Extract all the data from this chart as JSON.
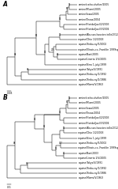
{
  "panel_A": {
    "label": "A",
    "scale_bar_label": "0.005",
    "leaves": [
      "canine/ca/ko-shelter/2005",
      "canine/Miami/2005",
      "canine/Iowa/2005",
      "canine/Texas/2004",
      "canine/Florida(Jax)/2/2003",
      "canine/Florida(Jax)/3/2004",
      "equine/Ala-san-houston-tello/2/12/2003",
      "equine/Ohio 1/2/2003",
      "equine/Xinbu-ny/5/2002",
      "equine/Illinois-co.-Franklin 1999sp/2004",
      "equine/Bari/2005",
      "equine/Linaria 1/V/2005",
      "equine/New 1-july/1999",
      "equine/Tokyo/V/1991",
      "equine/Xinbu-ny/1/1992",
      "equine/Xinbu-ny/2/1986",
      "equine/Miami/V/1963"
    ],
    "bootstrap": {
      "n_cm": "91",
      "n_cia": "85",
      "n_can": "93",
      "n_ao": "93",
      "n_xbl": "215",
      "n_bl": "86",
      "n_req": "93",
      "n_ce": "98",
      "n_tok": "88",
      "n_main": "88"
    }
  },
  "panel_B": {
    "label": "B",
    "scale_bar_label": "0.01",
    "leaves": [
      "canine/ca/ko-shelter/2005",
      "canine/Miami/2005",
      "canine/Iowa/2005",
      "canine/Texas/2004",
      "canine/Florida(Jax)/2/2003",
      "canine/Florida(Jax)/3/2004",
      "equine/Ala-san-houston-tello/2/12/2003",
      "equine/Ohio 1/2/2003",
      "equine/New 1-july/1999",
      "equine/Xinbu-ny/5/2002",
      "equine/Illinois-co.-Franklin 1999sp/2004",
      "equine/Bari/2003",
      "equine/Linaria 1/V/2005",
      "equine/Tokyo/V/1991",
      "equine/Xinbu-ny/1/1992",
      "equine/Xinbu-ny/2/1986",
      "equine/Miami/V/1963"
    ],
    "bootstrap": {
      "n_cm": "99",
      "n_cia": "81",
      "n_can": "76",
      "n_ao": "99",
      "n_xi": "467",
      "n_bl": "80",
      "n_xbl": "51",
      "n_req": "83",
      "n_ce": "93",
      "n_tok": "82",
      "n_main": "88"
    }
  },
  "line_color": "#000000",
  "background_color": "#ffffff",
  "font_size": 2.2,
  "label_font_size": 5.5,
  "lw": 0.35
}
